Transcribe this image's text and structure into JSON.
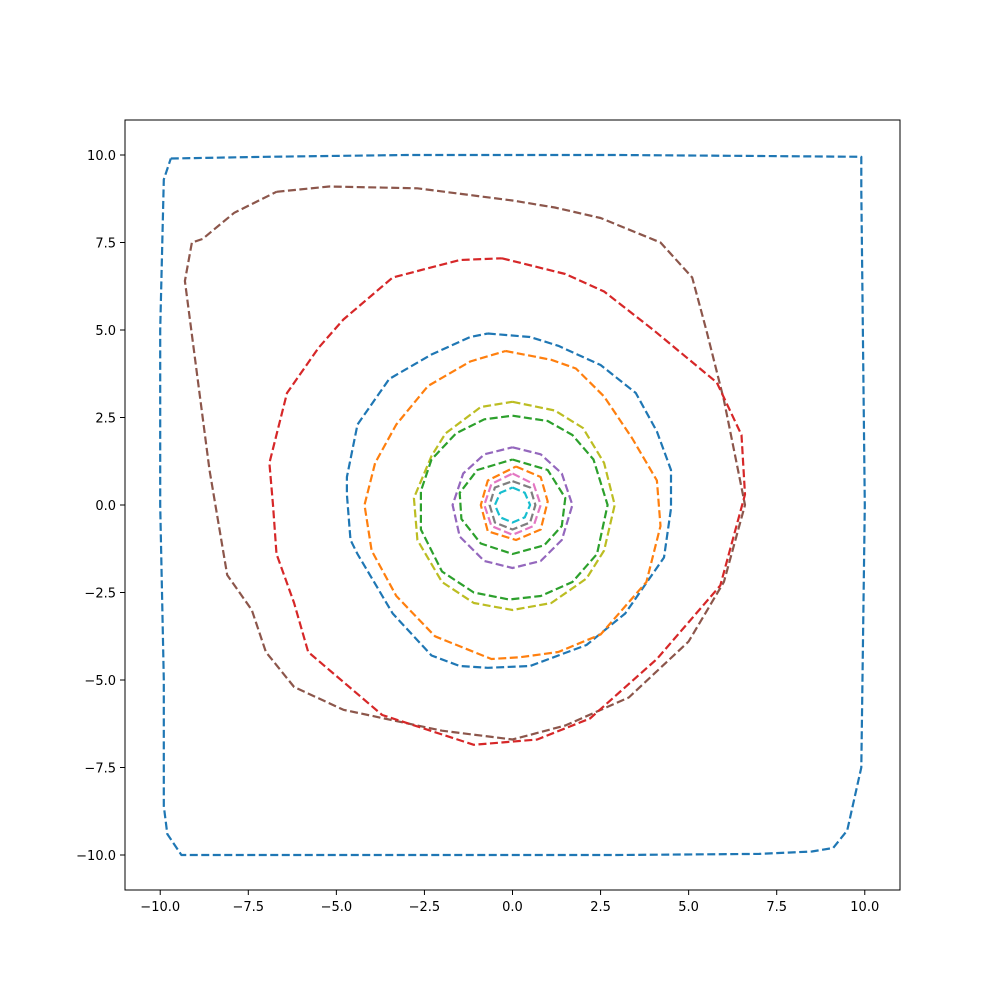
{
  "chart_data": {
    "type": "line",
    "title": "",
    "xlabel": "",
    "ylabel": "",
    "xlim": [
      -11,
      11
    ],
    "ylim": [
      -11,
      11
    ],
    "grid": false,
    "legend": "none",
    "x_ticks": [
      {
        "value": -10,
        "label": "−10.0"
      },
      {
        "value": -7.5,
        "label": "−7.5"
      },
      {
        "value": -5,
        "label": "−5.0"
      },
      {
        "value": -2.5,
        "label": "−2.5"
      },
      {
        "value": 0,
        "label": "0.0"
      },
      {
        "value": 2.5,
        "label": "2.5"
      },
      {
        "value": 5,
        "label": "5.0"
      },
      {
        "value": 7.5,
        "label": "7.5"
      },
      {
        "value": 10,
        "label": "10.0"
      }
    ],
    "y_ticks": [
      {
        "value": 10,
        "label": "10.0"
      },
      {
        "value": 7.5,
        "label": "7.5"
      },
      {
        "value": 5,
        "label": "5.0"
      },
      {
        "value": 2.5,
        "label": "2.5"
      },
      {
        "value": 0,
        "label": "0.0"
      },
      {
        "value": -2.5,
        "label": "−2.5"
      },
      {
        "value": -5,
        "label": "−5.0"
      },
      {
        "value": -7.5,
        "label": "−7.5"
      },
      {
        "value": -10,
        "label": "−10.0"
      }
    ],
    "series": [
      {
        "color": "#1f77b4",
        "x": [
          -9.7,
          -7,
          -3,
          0,
          3,
          7,
          9.9,
          9.9,
          10,
          9.9,
          9.5,
          9.1,
          8.5,
          7,
          3,
          0,
          -3,
          -6,
          -9.4,
          -9.8,
          -9.9,
          -9.9,
          -10,
          -10,
          -9.9,
          -9.7
        ],
        "y": [
          9.9,
          9.95,
          10,
          10,
          10,
          9.97,
          9.95,
          9,
          0,
          -7.5,
          -9.3,
          -9.8,
          -9.9,
          -9.97,
          -10,
          -10,
          -10,
          -10,
          -10,
          -9.4,
          -8.6,
          -5,
          0,
          5,
          9.3,
          9.9
        ]
      },
      {
        "color": "#8c564b",
        "x": [
          -6.7,
          -5.2,
          -2.7,
          0,
          1.2,
          2.5,
          4.2,
          5.1,
          5.5,
          6,
          6.4,
          6.6,
          6,
          5,
          3.3,
          1.5,
          0,
          -2,
          -4.8,
          -6.2,
          -7,
          -7.4,
          -8.1,
          -8.6,
          -9.3,
          -9.1,
          -8.8,
          -7.9,
          -6.7
        ],
        "y": [
          8.95,
          9.1,
          9.05,
          8.7,
          8.5,
          8.2,
          7.5,
          6.5,
          5,
          3,
          1,
          0,
          -2.2,
          -3.9,
          -5.5,
          -6.3,
          -6.7,
          -6.45,
          -5.85,
          -5.2,
          -4.2,
          -3,
          -2,
          1,
          6.4,
          7.5,
          7.6,
          8.35,
          8.95
        ]
      },
      {
        "color": "#d62728",
        "x": [
          -0.3,
          1.5,
          2.6,
          4,
          5.8,
          6.5,
          6.6,
          5.9,
          4.1,
          2.2,
          0.7,
          -1.1,
          -3.7,
          -5.8,
          -6.2,
          -6.7,
          -6.8,
          -6.9,
          -6.4,
          -5.5,
          -4.8,
          -3.4,
          -1.5,
          -0.3
        ],
        "y": [
          7.05,
          6.6,
          6.1,
          5,
          3.5,
          2,
          0.3,
          -2.3,
          -4.4,
          -6.1,
          -6.7,
          -6.85,
          -6,
          -4.2,
          -2.8,
          -1.4,
          0,
          1.2,
          3.2,
          4.5,
          5.3,
          6.5,
          7,
          7.05
        ]
      },
      {
        "color": "#1f77b4",
        "x": [
          -0.7,
          0.5,
          1.3,
          2.5,
          3.5,
          4.1,
          4.5,
          4.5,
          4.3,
          3.2,
          2.1,
          0.5,
          -0.7,
          -1.5,
          -2.3,
          -3.4,
          -4.4,
          -4.6,
          -4.7,
          -4.7,
          -4.4,
          -3.5,
          -2.3,
          -1.2,
          -0.7
        ],
        "y": [
          4.9,
          4.8,
          4.55,
          4,
          3.2,
          2.1,
          1,
          -0.1,
          -1.5,
          -3.1,
          -4,
          -4.6,
          -4.65,
          -4.6,
          -4.3,
          -3.1,
          -1.4,
          -1,
          0.3,
          0.8,
          2.3,
          3.6,
          4.3,
          4.8,
          4.9
        ]
      },
      {
        "color": "#ff7f0e",
        "x": [
          -0.2,
          1.1,
          1.8,
          2.6,
          3.4,
          4.1,
          4.2,
          3.8,
          2.5,
          1.3,
          0.2,
          -0.6,
          -2.2,
          -3.3,
          -4,
          -4.2,
          -3.9,
          -3.3,
          -2.4,
          -1.2,
          -0.2
        ],
        "y": [
          4.4,
          4.15,
          3.9,
          3.1,
          1.9,
          0.7,
          -0.6,
          -2.2,
          -3.7,
          -4.2,
          -4.35,
          -4.4,
          -3.75,
          -2.6,
          -1.3,
          0,
          1.2,
          2.3,
          3.4,
          4.1,
          4.4
        ]
      },
      {
        "color": "#bcbd22",
        "x": [
          0,
          1.2,
          2,
          2.6,
          2.9,
          2.6,
          2.1,
          1.1,
          0,
          -1.1,
          -2,
          -2.7,
          -2.8,
          -2.3,
          -1.9,
          -0.9,
          0
        ],
        "y": [
          2.95,
          2.7,
          2.2,
          1.2,
          0,
          -1.3,
          -2.1,
          -2.8,
          -3,
          -2.8,
          -2.2,
          -1,
          0.2,
          1.4,
          2.05,
          2.8,
          2.95
        ]
      },
      {
        "color": "#2ca02c",
        "x": [
          0,
          1,
          1.7,
          2.3,
          2.7,
          2.4,
          1.7,
          0.8,
          -0.1,
          -1.1,
          -2,
          -2.6,
          -2.6,
          -2.3,
          -1.6,
          -0.8,
          0
        ],
        "y": [
          2.55,
          2.4,
          2,
          1.3,
          0,
          -1.4,
          -2.2,
          -2.6,
          -2.7,
          -2.5,
          -1.9,
          -0.7,
          0.4,
          1.3,
          2.05,
          2.45,
          2.55
        ]
      },
      {
        "color": "#9467bd",
        "x": [
          0,
          0.8,
          1.4,
          1.7,
          1.4,
          0.8,
          0,
          -0.8,
          -1.5,
          -1.7,
          -1.4,
          -0.8,
          0
        ],
        "y": [
          1.65,
          1.45,
          0.9,
          0,
          -1,
          -1.6,
          -1.8,
          -1.6,
          -0.9,
          0,
          0.9,
          1.45,
          1.65
        ]
      },
      {
        "color": "#2ca02c",
        "x": [
          0,
          1,
          1.5,
          1.4,
          0.9,
          0,
          -0.9,
          -1.45,
          -1.5,
          -1,
          0
        ],
        "y": [
          1.3,
          1,
          0.2,
          -0.6,
          -1.15,
          -1.4,
          -1.1,
          -0.4,
          0.35,
          1,
          1.3
        ]
      },
      {
        "color": "#ff7f0e",
        "x": [
          0.1,
          0.8,
          1,
          0.8,
          0.1,
          -0.7,
          -0.9,
          -0.7,
          0.1
        ],
        "y": [
          1.1,
          0.8,
          0.1,
          -0.7,
          -1,
          -0.75,
          0,
          0.7,
          1.1
        ]
      },
      {
        "color": "#e377c2",
        "x": [
          0,
          0.6,
          0.8,
          0.6,
          0,
          -0.6,
          -0.8,
          -0.6,
          0
        ],
        "y": [
          0.9,
          0.6,
          0,
          -0.6,
          -0.85,
          -0.6,
          0,
          0.6,
          0.9
        ]
      },
      {
        "color": "#7f7f7f",
        "x": [
          0,
          0.5,
          0.65,
          0.5,
          0,
          -0.5,
          -0.65,
          -0.5,
          0
        ],
        "y": [
          0.68,
          0.5,
          0,
          -0.5,
          -0.7,
          -0.5,
          0,
          0.5,
          0.68
        ]
      },
      {
        "color": "#17becf",
        "x": [
          0,
          0.35,
          0.5,
          0.35,
          0,
          -0.35,
          -0.5,
          -0.35,
          0
        ],
        "y": [
          0.5,
          0.35,
          0,
          -0.35,
          -0.5,
          -0.35,
          0,
          0.35,
          0.5
        ]
      }
    ]
  }
}
